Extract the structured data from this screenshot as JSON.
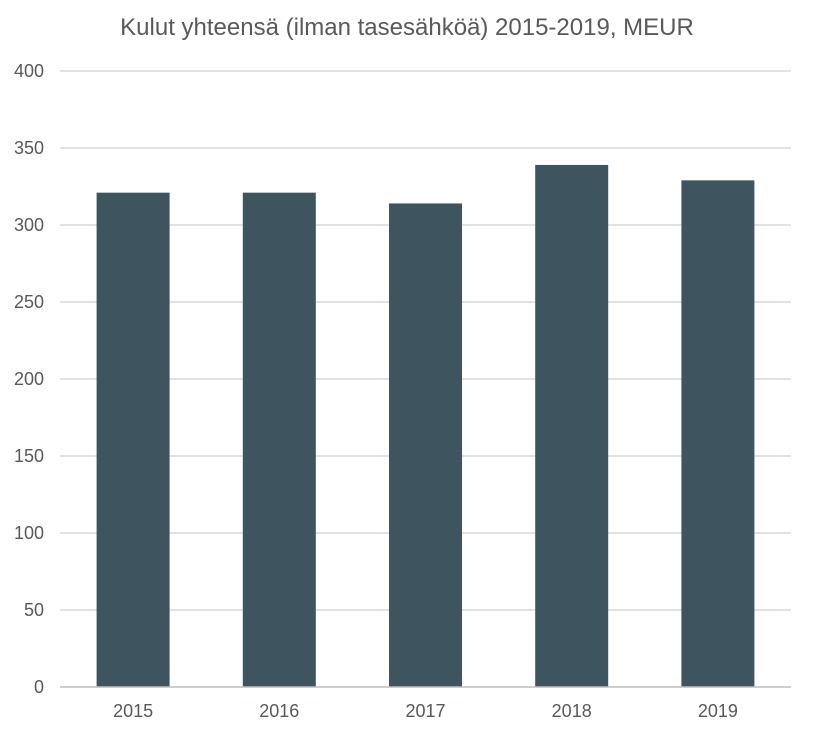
{
  "chart_data": {
    "type": "bar",
    "title": "Kulut yhteensä (ilman tasesähköä) 2015-2019, MEUR",
    "xlabel": "",
    "ylabel": "",
    "categories": [
      "2015",
      "2016",
      "2017",
      "2018",
      "2019"
    ],
    "values": [
      321,
      321,
      314,
      339,
      329
    ],
    "ylim": [
      0,
      400
    ],
    "yticks": [
      0,
      50,
      100,
      150,
      200,
      250,
      300,
      350,
      400
    ],
    "grid": true,
    "legend": "none",
    "bar_color": "#3e5560"
  }
}
